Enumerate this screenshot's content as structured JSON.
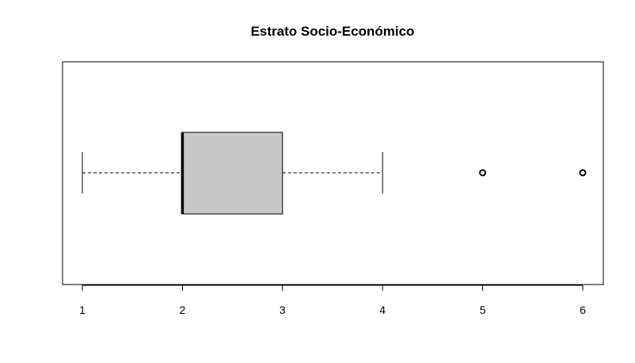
{
  "chart_data": {
    "type": "boxplot",
    "orientation": "horizontal",
    "title": "Estrato Socio-Económico",
    "xlabel": "",
    "ylabel": "",
    "xlim": [
      1,
      6
    ],
    "ticks": [
      1,
      2,
      3,
      4,
      5,
      6
    ],
    "grid": false,
    "box": {
      "whisker_low": 1,
      "q1": 2,
      "median": 2,
      "q3": 3,
      "whisker_high": 4,
      "outliers": [
        5,
        6
      ],
      "fill_color": "#c8c8c8"
    }
  }
}
